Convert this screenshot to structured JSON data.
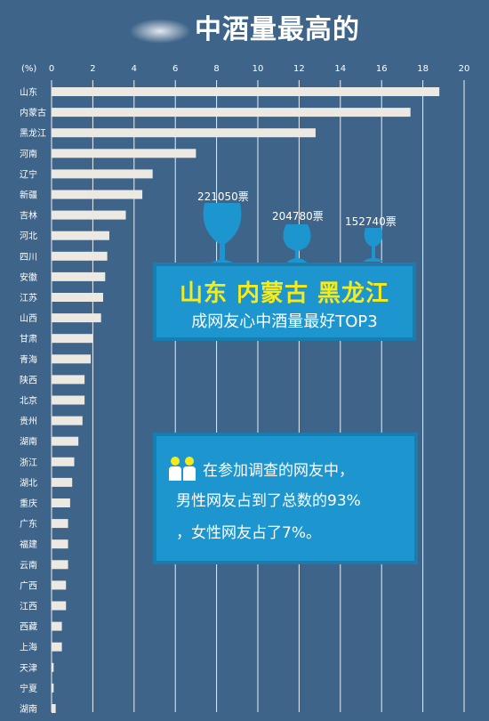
{
  "title": "中酒量最高的",
  "chart_data": {
    "type": "bar",
    "orientation": "horizontal",
    "title": "中酒量最高的",
    "unit_label": "(%)",
    "xlim": [
      0,
      20
    ],
    "ticks": [
      0,
      2,
      4,
      6,
      8,
      10,
      12,
      14,
      16,
      18,
      20
    ],
    "grid": true,
    "categories": [
      "山东",
      "内蒙古",
      "黑龙江",
      "河南",
      "辽宁",
      "新疆",
      "吉林",
      "河北",
      "四川",
      "安徽",
      "江苏",
      "山西",
      "甘肃",
      "青海",
      "陕西",
      "北京",
      "贵州",
      "湖南",
      "浙江",
      "湖北",
      "重庆",
      "广东",
      "福建",
      "云南",
      "广西",
      "江西",
      "西藏",
      "上海",
      "天津",
      "宁夏",
      "湖南"
    ],
    "values": [
      18.8,
      17.4,
      12.8,
      7.0,
      4.9,
      4.4,
      3.6,
      2.8,
      2.7,
      2.6,
      2.5,
      2.4,
      2.0,
      1.9,
      1.6,
      1.6,
      1.5,
      1.3,
      1.1,
      1.0,
      0.9,
      0.8,
      0.8,
      0.8,
      0.7,
      0.7,
      0.5,
      0.5,
      0.1,
      0.1,
      0.2
    ]
  },
  "top3": {
    "provinces": "山东  内蒙古  黑龙江",
    "caption": "成网友心中酒量最好TOP3",
    "votes": [
      "221050票",
      "204780票",
      "152740票"
    ]
  },
  "gender": {
    "line1": "在参加调查的网友中，",
    "line2": "男性网友占到了总数的93%",
    "line3": "，女性网友占了7%。"
  },
  "colors": {
    "background": "#3e6489",
    "bar": "#ece8e2",
    "panel": "#1d96cf",
    "highlight": "#f7ea1b",
    "glass": "#1d96cf"
  }
}
